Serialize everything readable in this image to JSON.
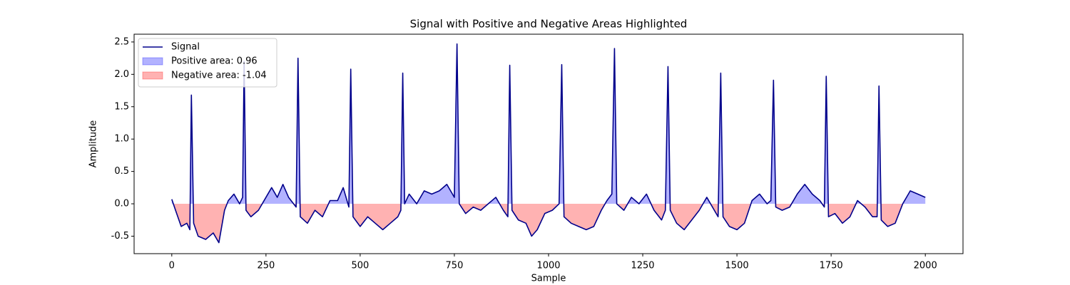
{
  "chart_data": {
    "type": "line",
    "title": "Signal with Positive and Negative Areas Highlighted",
    "xlabel": "Sample",
    "ylabel": "Amplitude",
    "x": [
      0,
      10,
      25,
      40,
      48,
      52,
      58,
      70,
      90,
      110,
      125,
      140,
      150,
      165,
      180,
      188,
      192,
      197,
      210,
      230,
      250,
      265,
      280,
      295,
      310,
      330,
      335,
      341,
      360,
      380,
      400,
      420,
      440,
      455,
      470,
      475,
      481,
      500,
      520,
      540,
      560,
      580,
      600,
      608,
      613,
      618,
      630,
      650,
      670,
      690,
      710,
      730,
      750,
      757,
      763,
      780,
      800,
      820,
      840,
      860,
      880,
      892,
      897,
      903,
      920,
      940,
      955,
      970,
      990,
      1010,
      1028,
      1035,
      1041,
      1060,
      1080,
      1100,
      1120,
      1140,
      1155,
      1168,
      1175,
      1181,
      1200,
      1220,
      1240,
      1260,
      1280,
      1300,
      1310,
      1317,
      1323,
      1340,
      1360,
      1380,
      1400,
      1420,
      1440,
      1450,
      1457,
      1463,
      1480,
      1500,
      1520,
      1540,
      1560,
      1580,
      1590,
      1597,
      1603,
      1620,
      1640,
      1660,
      1680,
      1700,
      1720,
      1732,
      1737,
      1743,
      1760,
      1780,
      1800,
      1820,
      1840,
      1860,
      1872,
      1877,
      1883,
      1900,
      1920,
      1940,
      1960,
      1980,
      2000
    ],
    "series": [
      {
        "name": "Signal",
        "color": "#00008b",
        "values": [
          0.07,
          -0.1,
          -0.35,
          -0.3,
          -0.4,
          1.68,
          -0.3,
          -0.5,
          -0.55,
          -0.45,
          -0.6,
          -0.1,
          0.05,
          0.15,
          0.0,
          0.1,
          2.2,
          -0.1,
          -0.2,
          -0.1,
          0.1,
          0.25,
          0.1,
          0.3,
          0.1,
          -0.05,
          2.25,
          -0.2,
          -0.3,
          -0.1,
          -0.2,
          0.05,
          0.05,
          0.25,
          -0.05,
          2.08,
          -0.2,
          -0.35,
          -0.2,
          -0.3,
          -0.4,
          -0.3,
          -0.2,
          -0.1,
          2.02,
          0.0,
          0.15,
          0.0,
          0.2,
          0.15,
          0.2,
          0.3,
          0.1,
          2.47,
          0.0,
          -0.15,
          -0.05,
          -0.1,
          0.0,
          0.1,
          -0.1,
          -0.2,
          2.14,
          -0.1,
          -0.25,
          -0.3,
          -0.5,
          -0.4,
          -0.15,
          -0.1,
          0.0,
          2.15,
          -0.2,
          -0.3,
          -0.35,
          -0.4,
          -0.35,
          -0.1,
          0.05,
          0.15,
          2.4,
          0.0,
          -0.1,
          0.1,
          0.0,
          0.15,
          -0.1,
          -0.25,
          -0.1,
          2.12,
          -0.1,
          -0.3,
          -0.4,
          -0.25,
          -0.1,
          0.1,
          -0.1,
          -0.2,
          2.02,
          -0.2,
          -0.35,
          -0.4,
          -0.3,
          0.05,
          0.15,
          0.0,
          0.05,
          1.91,
          -0.05,
          -0.1,
          -0.05,
          0.15,
          0.3,
          0.15,
          0.05,
          -0.05,
          1.97,
          -0.2,
          -0.15,
          -0.3,
          -0.2,
          0.05,
          -0.05,
          -0.2,
          -0.2,
          1.82,
          -0.25,
          -0.35,
          -0.3,
          0.0,
          0.2,
          0.15,
          0.1
        ]
      }
    ],
    "areas": [
      {
        "name": "Positive area: 0.96",
        "color": "#0000ff",
        "side": "positive",
        "opacity": 0.3
      },
      {
        "name": "Negative area: -1.04",
        "color": "#ff0000",
        "side": "negative",
        "opacity": 0.3
      }
    ],
    "xlim": [
      -100,
      2100
    ],
    "ylim": [
      -0.77,
      2.62
    ],
    "xticks": [
      0,
      250,
      500,
      750,
      1000,
      1250,
      1500,
      1750,
      2000
    ],
    "yticks": [
      -0.5,
      {
        "value": 0,
        "label": "0.0"
      },
      0.5,
      {
        "value": 1,
        "label": "1.0"
      },
      1.5,
      {
        "value": 2,
        "label": "2.0"
      },
      2.5
    ],
    "legend": "upper left"
  }
}
